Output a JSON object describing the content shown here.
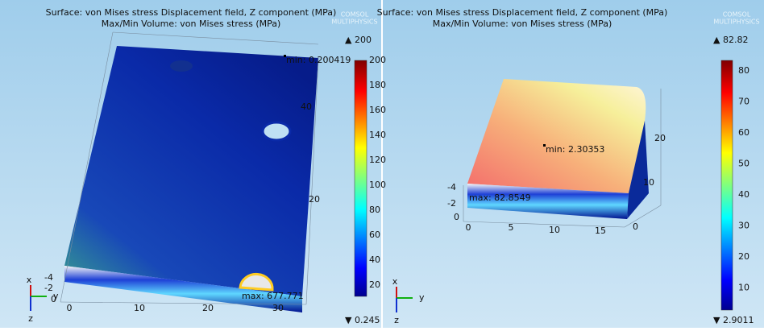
{
  "panels": [
    {
      "title": "Surface: von Mises stress Displacement field, Z component (MPa)",
      "subtitle": "Max/Min Volume: von Mises stress (MPa)",
      "logo": [
        "COMSOL",
        "MULTIPHYSICS"
      ],
      "colorbar": {
        "max_label": "▲ 200",
        "min_label": "▼ 0.245",
        "ticks": [
          "200",
          "180",
          "160",
          "140",
          "120",
          "100",
          "80",
          "60",
          "40",
          "20"
        ]
      },
      "annotations": {
        "min": "min: 0.200419",
        "max": "max: 677.771"
      },
      "x_ticks": [
        "0",
        "10",
        "20",
        "30"
      ],
      "y_ticks": [
        "40",
        "20"
      ],
      "z_ticks": [
        "-4",
        "-2",
        "0"
      ],
      "triad": [
        "x",
        "y",
        "z"
      ]
    },
    {
      "title": "Surface: von Mises stress Displacement field, Z component (MPa)",
      "subtitle": "Max/Min Volume: von Mises stress (MPa)",
      "logo": [
        "COMSOL",
        "MULTIPHYSICS"
      ],
      "colorbar": {
        "max_label": "▲ 82.82",
        "min_label": "▼ 2.9011",
        "ticks": [
          "80",
          "70",
          "60",
          "50",
          "40",
          "30",
          "20",
          "10"
        ]
      },
      "annotations": {
        "min": "min: 2.30353",
        "max": "max: 82.8549"
      },
      "x_ticks": [
        "0",
        "5",
        "10",
        "15"
      ],
      "y_ticks": [
        "20",
        "10",
        "0"
      ],
      "z_ticks": [
        "-4",
        "-2",
        "0"
      ],
      "triad": [
        "x",
        "y",
        "z"
      ]
    }
  ]
}
